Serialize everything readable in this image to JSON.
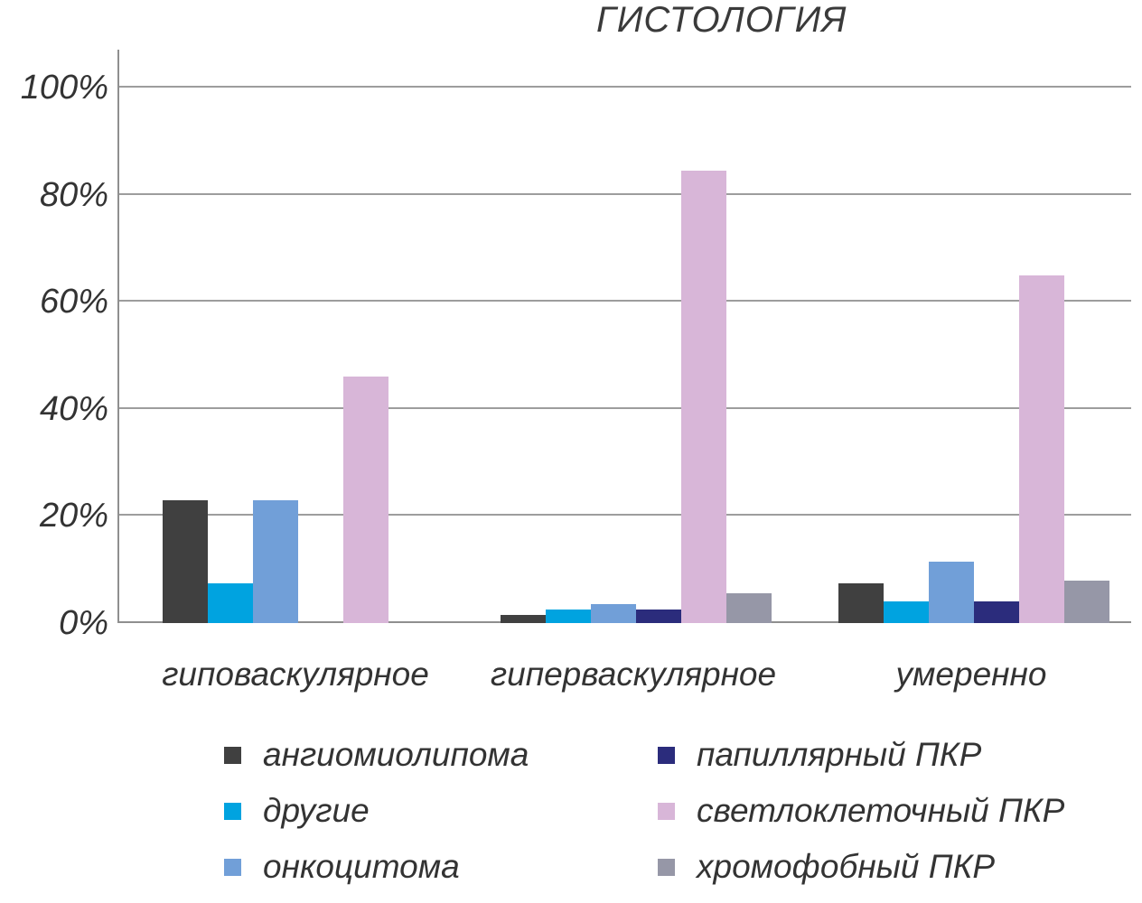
{
  "chart_data": {
    "type": "bar",
    "title": "ГИСТОЛОГИЯ",
    "categories": [
      "гиповаскулярное",
      "гиперваскулярное",
      "умеренно"
    ],
    "series": [
      {
        "name": "ангиомиолипома",
        "color": "#404040",
        "values": [
          23,
          1.5,
          7.5
        ]
      },
      {
        "name": "другие",
        "color": "#00a3e0",
        "values": [
          7.5,
          2.5,
          4
        ]
      },
      {
        "name": "онкоцитома",
        "color": "#719fd8",
        "values": [
          23,
          3.5,
          11.5
        ]
      },
      {
        "name": "папиллярный ПКР",
        "color": "#2b2c7c",
        "values": [
          0,
          2.5,
          4
        ]
      },
      {
        "name": "светлоклеточный ПКР",
        "color": "#d8b6d8",
        "values": [
          46,
          84.5,
          65
        ]
      },
      {
        "name": "хромофобный ПКР",
        "color": "#9697a7",
        "values": [
          0,
          5.5,
          8
        ]
      }
    ],
    "y_ticks": [
      "0%",
      "20%",
      "40%",
      "60%",
      "80%",
      "100%"
    ],
    "ylim": [
      0,
      100
    ],
    "grid": true,
    "legend_position": "bottom, two columns"
  }
}
